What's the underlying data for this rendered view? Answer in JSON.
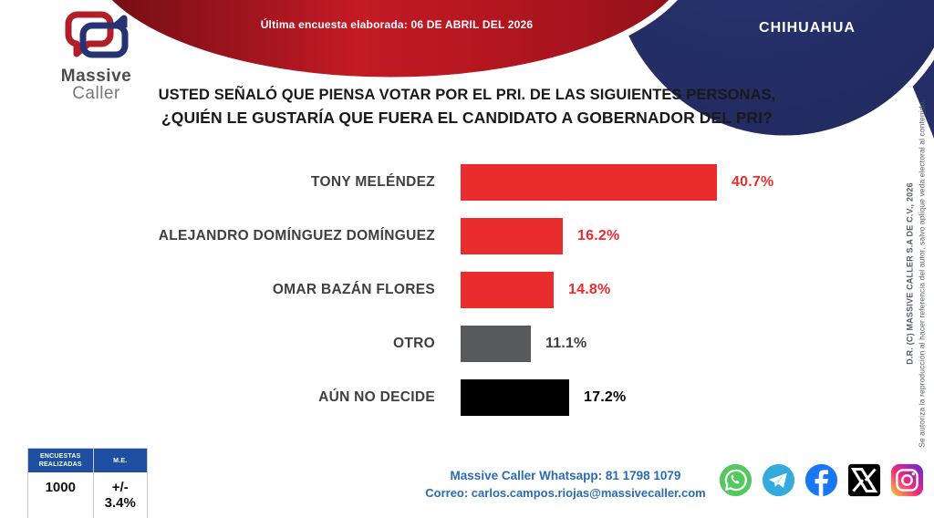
{
  "header": {
    "date_banner": "Última encuesta elaborada: 06 DE ABRIL DEL 2026",
    "region": "CHIHUAHUA",
    "logo": {
      "word1": "Massive",
      "word2": "Caller"
    }
  },
  "question": {
    "line1": "USTED SEÑALÓ QUE PIENSA VOTAR POR EL PRI. DE LAS SIGUIENTES PERSONAS,",
    "line2": "¿QUIÉN LE GUSTARÍA QUE FUERA EL CANDIDATO A GOBERNADOR DEL PRI?"
  },
  "chart_data": {
    "type": "bar",
    "orientation": "horizontal",
    "title": "¿QUIÉN LE GUSTARÍA QUE FUERA EL CANDIDATO A GOBERNADOR DEL PRI?",
    "categories": [
      "TONY MELÉNDEZ",
      "ALEJANDRO DOMÍNGUEZ DOMÍNGUEZ",
      "OMAR BAZÁN FLORES",
      "OTRO",
      "AÚN NO DECIDE"
    ],
    "values": [
      40.7,
      16.2,
      14.8,
      11.1,
      17.2
    ],
    "value_labels": [
      "40.7%",
      "16.2%",
      "14.8%",
      "11.1%",
      "17.2%"
    ],
    "bar_colors": [
      "#e92c2c",
      "#e92c2c",
      "#e92c2c",
      "#58595b",
      "#000000"
    ],
    "value_label_colors": [
      "#e92c2c",
      "#e92c2c",
      "#e92c2c",
      "#3f3f41",
      "#000000"
    ],
    "xlim": [
      0,
      45
    ],
    "grid": false,
    "legend": false
  },
  "stats_table": {
    "headers": [
      "ENCUESTAS REALIZADAS",
      "M.E."
    ],
    "values": [
      "1000",
      "+/- 3.4%"
    ]
  },
  "contact": {
    "whatsapp": "Massive Caller Whatsapp: 81 1798 1079",
    "email": "Correo: carlos.campos.riojas@massivecaller.com"
  },
  "social": {
    "icons": [
      "whatsapp-icon",
      "telegram-icon",
      "facebook-icon",
      "x-icon",
      "instagram-icon"
    ]
  },
  "copyright": {
    "line1": "D.R. (C) MASSIVE CALLER S.A DE C.V., 2026",
    "line2": "Se autoriza la reproducción al hacer referencia del autor, salvo aplique veda electoral al contenido."
  },
  "colors": {
    "accent_red": "#e92c2c",
    "banner_red_dark": "#7a0c16",
    "banner_red_bright": "#c41a24",
    "navy": "#252e66",
    "gray_bar": "#58595b",
    "black_bar": "#000000",
    "contact_blue": "#2a6cb0",
    "table_header_blue": "#1e4fa0"
  }
}
